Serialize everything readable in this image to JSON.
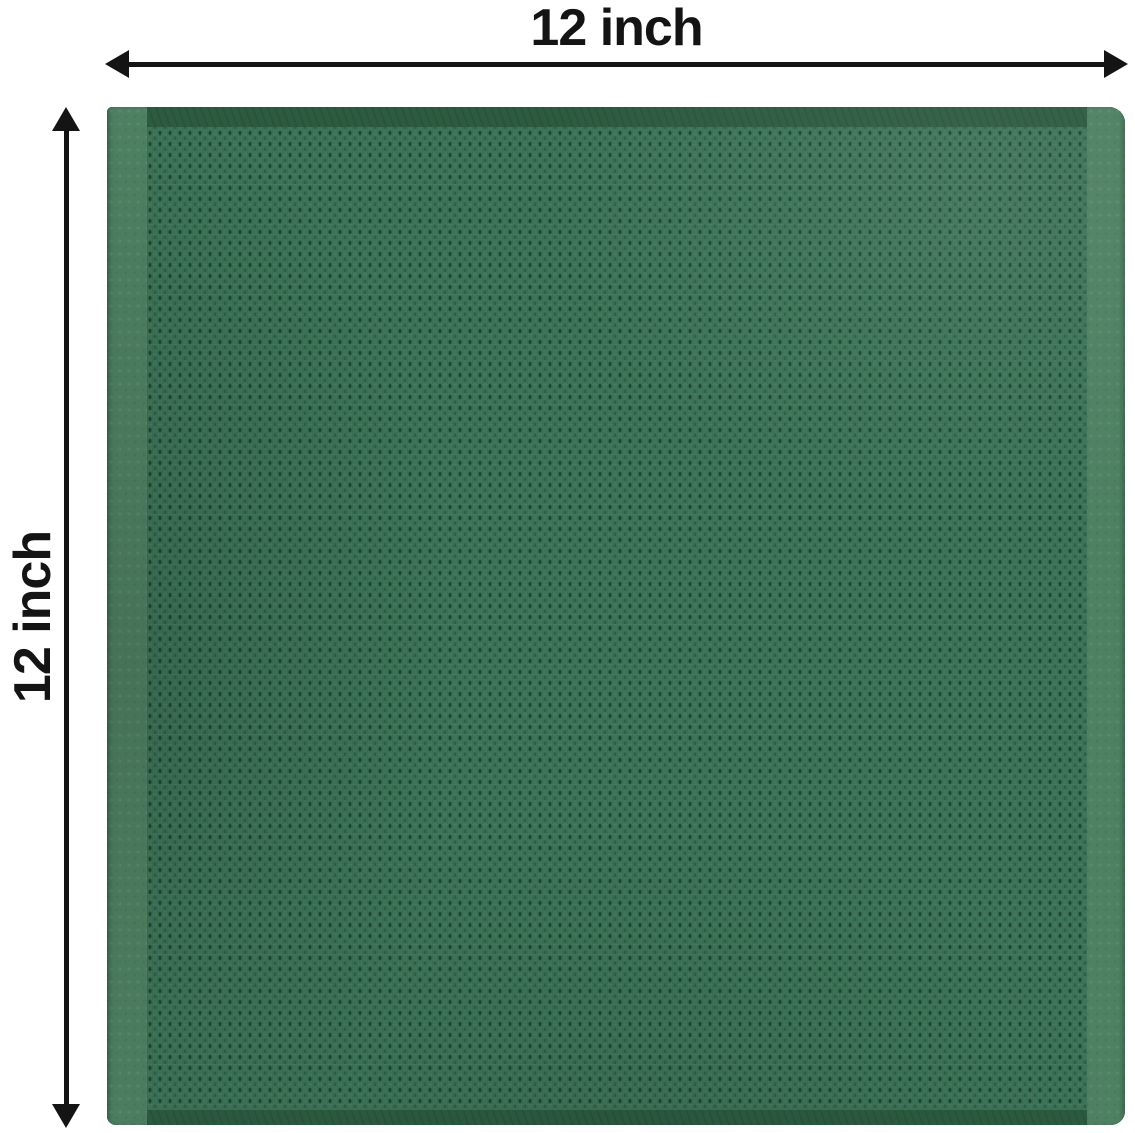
{
  "annotations": {
    "width_label": "12 inch",
    "height_label": "12 inch"
  },
  "colors": {
    "background": "#ffffff",
    "arrow": "#141414",
    "label_text": "#141414",
    "fabric_base": "#3e7458",
    "fabric_dot_dark": "#1a4731",
    "fabric_dot_mid": "#2d6146",
    "selvage": "#4e8062",
    "hem": "#2c5b40"
  }
}
